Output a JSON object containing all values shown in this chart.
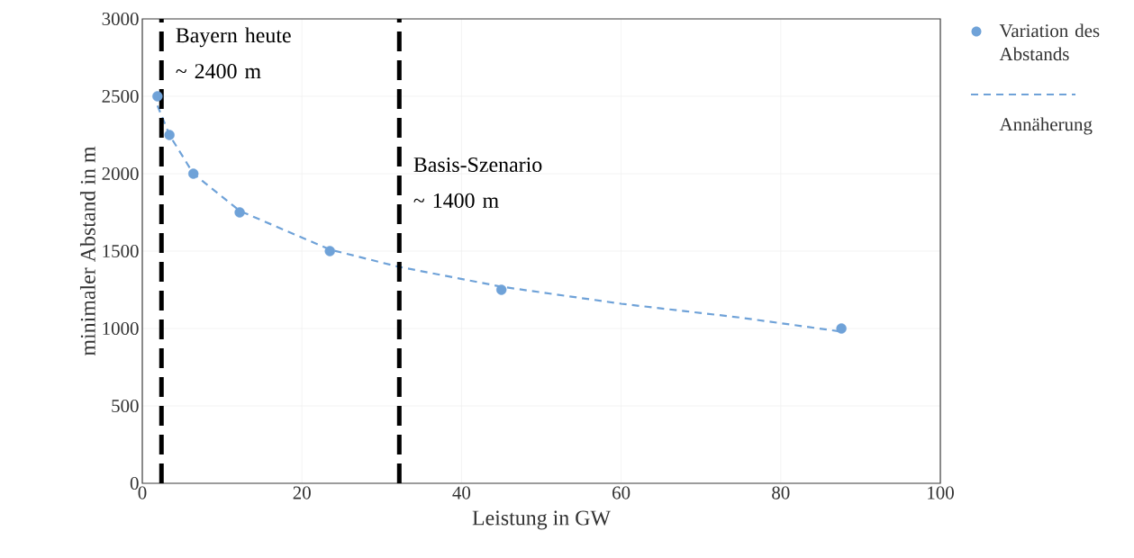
{
  "chart_data": {
    "type": "scatter",
    "xlabel": "Leistung in GW",
    "ylabel": "minimaler Abstand in m",
    "series": [
      {
        "name": "Variation des Abstands",
        "color": "#6fa2d8",
        "marker": "circle",
        "x": [
          1.9,
          3.4,
          6.4,
          12.2,
          23.5,
          45,
          87.6
        ],
        "values": [
          2500,
          2250,
          2000,
          1750,
          1500,
          1250,
          1000
        ]
      },
      {
        "name": "Annäherung",
        "type": "line",
        "color": "#6fa2d8",
        "line_style": "dashed",
        "marker": "none",
        "x": [
          1.9,
          3.4,
          6.4,
          12.2,
          23.5,
          32,
          45,
          60,
          75,
          87.6
        ],
        "values": [
          2440,
          2250,
          2000,
          1760,
          1510,
          1400,
          1270,
          1160,
          1070,
          980
        ]
      }
    ],
    "xlim": [
      0,
      100
    ],
    "ylim": [
      0,
      3000
    ],
    "xticks": [
      0,
      20,
      40,
      60,
      80,
      100
    ],
    "yticks": [
      0,
      500,
      1000,
      1500,
      2000,
      2500,
      3000
    ],
    "ref_lines": [
      {
        "axis": "x",
        "value": 2.4,
        "label": "Bayern heute ~ 2400 m",
        "color": "#000000",
        "line_style": "dashed"
      },
      {
        "axis": "x",
        "value": 32.2,
        "label": "Basis-Szenario ~ 1400 m",
        "color": "#000000",
        "line_style": "dashed"
      }
    ],
    "grid": true,
    "legend": "top right"
  }
}
